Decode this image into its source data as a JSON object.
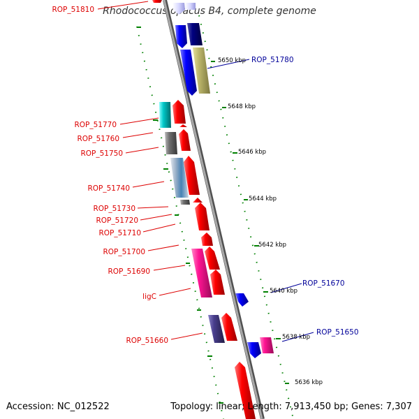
{
  "title": "Rhodococcus opacus B4, complete genome",
  "footer": {
    "accession": "Accession: NC_012522",
    "topology": "Topology: linear; Length: 7,913,450 bp; Genes: 7,307"
  },
  "scale_labels": [
    "5650 kbp",
    "5648 kbp",
    "5646 kbp",
    "5644 kbp",
    "5642 kbp",
    "5640 kbp",
    "5638 kbp",
    "5636 kbp"
  ],
  "gene_labels_left": [
    "ROP_51810",
    "ROP_51770",
    "ROP_51760",
    "ROP_51750",
    "ROP_51740",
    "ROP_51730",
    "ROP_51720",
    "ROP_51710",
    "ROP_51700",
    "ROP_51690",
    "ligC",
    "ROP_51660"
  ],
  "gene_labels_right": [
    "ROP_51780",
    "ROP_51670",
    "ROP_51650"
  ],
  "colors": {
    "reverse_label": "#dd0000",
    "forward_label": "#000099",
    "scale_tick": "#008000",
    "backbone": "#808080",
    "red_gene": "#ff0000",
    "blue_gene": "#0000ff",
    "navy_gene": "#000080",
    "olive_gene": "#bdb76b",
    "cyan_gene": "#00c0c0",
    "gray_gene": "#707070",
    "steel_gene": "#4682b4",
    "magenta_gene": "#ff1493",
    "slate_gene": "#483d8b"
  }
}
